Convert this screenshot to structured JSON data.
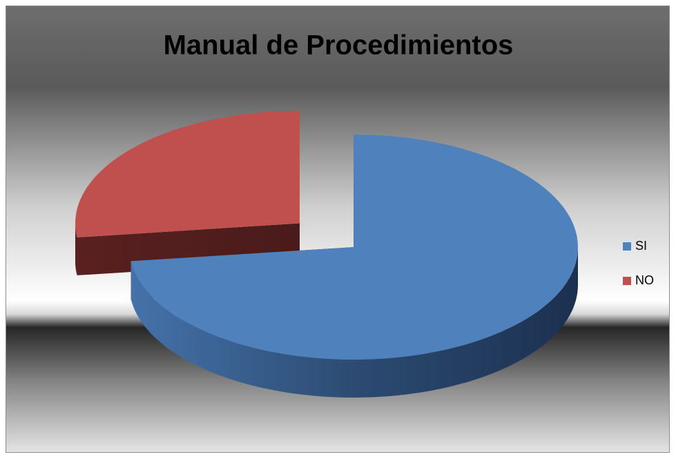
{
  "chart_data": {
    "type": "pie3d",
    "title": "Manual de Procedimientos",
    "categories": [
      "SI",
      "NO"
    ],
    "values": [
      73,
      27
    ],
    "colors": [
      "#4f81bd",
      "#c0504d"
    ],
    "legend": "right",
    "exploded": [
      1
    ]
  }
}
